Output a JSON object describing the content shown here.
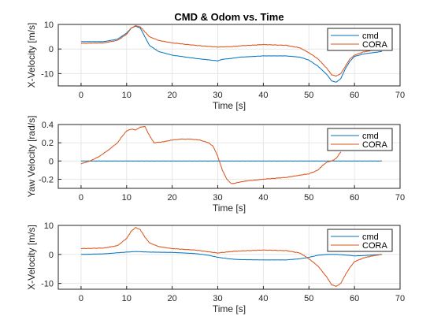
{
  "colors": {
    "cmd": "#0072BD",
    "CORA": "#D95319",
    "grid": "#e6e6e6",
    "axis": "#262626"
  },
  "chart_data": [
    {
      "type": "line",
      "title": "CMD & Odom vs. Time",
      "xlabel": "Time [s]",
      "ylabel": "X-Velocity [m/s]",
      "xlim": [
        -5,
        70
      ],
      "ylim": [
        -15,
        10
      ],
      "xticks": [
        0,
        10,
        20,
        30,
        40,
        50,
        60,
        70
      ],
      "yticks": [
        -10,
        0,
        10
      ],
      "grid": true,
      "legend": "top-right",
      "series": [
        {
          "name": "cmd",
          "x": [
            0,
            5,
            8,
            10,
            11,
            12,
            13,
            14,
            15,
            17,
            20,
            25,
            30,
            31,
            33,
            35,
            40,
            45,
            48,
            50,
            52,
            54,
            55,
            56,
            57,
            58,
            59,
            60,
            62,
            64,
            66
          ],
          "y": [
            3,
            3,
            4,
            6.5,
            8.5,
            9.3,
            8.5,
            5,
            1.5,
            -1,
            -2.5,
            -3.8,
            -4.8,
            -4.2,
            -3.8,
            -3.3,
            -2.8,
            -2.8,
            -3.3,
            -4.5,
            -7,
            -10.5,
            -13,
            -13.5,
            -12,
            -8,
            -5,
            -3,
            -2,
            -1.5,
            -1
          ]
        },
        {
          "name": "CORA",
          "x": [
            0,
            5,
            8,
            10,
            11,
            12,
            13,
            14,
            15,
            17,
            20,
            25,
            30,
            33,
            35,
            40,
            45,
            48,
            50,
            52,
            54,
            55,
            56,
            57,
            58,
            59,
            60,
            62,
            64,
            66
          ],
          "y": [
            2.3,
            2.5,
            3.5,
            6,
            8.5,
            9.5,
            9,
            7,
            5,
            3.5,
            2.5,
            1.5,
            0.8,
            1,
            1.3,
            1.8,
            1.5,
            0.5,
            -1.5,
            -4,
            -8,
            -10.5,
            -11,
            -10,
            -7,
            -4,
            -2.5,
            -1.2,
            -0.5,
            0
          ]
        }
      ]
    },
    {
      "type": "line",
      "title": "",
      "xlabel": "Time [s]",
      "ylabel": "Yaw Velocity [rad/s]",
      "xlim": [
        -5,
        70
      ],
      "ylim": [
        -0.3,
        0.4
      ],
      "xticks": [
        0,
        10,
        20,
        30,
        40,
        50,
        60,
        70
      ],
      "yticks": [
        -0.2,
        0,
        0.2,
        0.4
      ],
      "ytick_labels": [
        "-0.2",
        "0",
        "0.2",
        "0.4"
      ],
      "grid": true,
      "legend": "top-right",
      "series": [
        {
          "name": "cmd",
          "x": [
            0,
            66
          ],
          "y": [
            0,
            0
          ]
        },
        {
          "name": "CORA",
          "x": [
            0,
            2,
            4,
            6,
            8,
            9,
            10,
            11,
            12,
            13,
            14,
            15,
            16,
            18,
            20,
            22,
            24,
            26,
            28,
            29,
            30,
            31,
            32,
            33,
            34,
            36,
            40,
            45,
            50,
            52,
            53,
            54,
            55,
            56,
            57
          ],
          "y": [
            -0.03,
            0,
            0.05,
            0.12,
            0.2,
            0.27,
            0.33,
            0.35,
            0.34,
            0.37,
            0.38,
            0.28,
            0.2,
            0.21,
            0.23,
            0.24,
            0.24,
            0.23,
            0.2,
            0.16,
            0.05,
            -0.1,
            -0.2,
            -0.25,
            -0.24,
            -0.22,
            -0.2,
            -0.18,
            -0.14,
            -0.1,
            -0.05,
            -0.01,
            0,
            0.03,
            0.1
          ]
        }
      ]
    },
    {
      "type": "line",
      "title": "",
      "xlabel": "Time [s]",
      "ylabel": "X-Velocity [m/s]",
      "xlim": [
        -5,
        70
      ],
      "ylim": [
        -12,
        10
      ],
      "xticks": [
        0,
        10,
        20,
        30,
        40,
        50,
        60,
        70
      ],
      "yticks": [
        -10,
        0,
        10
      ],
      "grid": true,
      "legend": "top-right",
      "series": [
        {
          "name": "cmd",
          "x": [
            0,
            5,
            10,
            12,
            15,
            20,
            25,
            28,
            30,
            33,
            35,
            40,
            45,
            48,
            50,
            52,
            54,
            56,
            58,
            60,
            62,
            64,
            66
          ],
          "y": [
            0,
            0.2,
            0.8,
            1,
            0.8,
            0.7,
            0.3,
            -0.3,
            -1,
            -1.6,
            -1.8,
            -1.9,
            -1.9,
            -1.5,
            -1,
            -0.3,
            0,
            0,
            -0.2,
            -0.5,
            -0.4,
            -0.2,
            0
          ]
        },
        {
          "name": "CORA",
          "x": [
            0,
            5,
            8,
            10,
            11,
            12,
            13,
            14,
            15,
            17,
            20,
            25,
            30,
            33,
            35,
            40,
            45,
            48,
            50,
            52,
            54,
            55,
            56,
            57,
            58,
            59,
            60,
            62,
            64,
            66
          ],
          "y": [
            2,
            2.2,
            3,
            5.5,
            8,
            9.3,
            8.5,
            6,
            4,
            2.7,
            2,
            1.5,
            0.5,
            1,
            1.2,
            1.5,
            1.3,
            0.5,
            -1.5,
            -4,
            -8,
            -10.5,
            -11,
            -10,
            -7,
            -4.5,
            -2.5,
            -1.2,
            -0.5,
            0
          ]
        }
      ]
    }
  ]
}
